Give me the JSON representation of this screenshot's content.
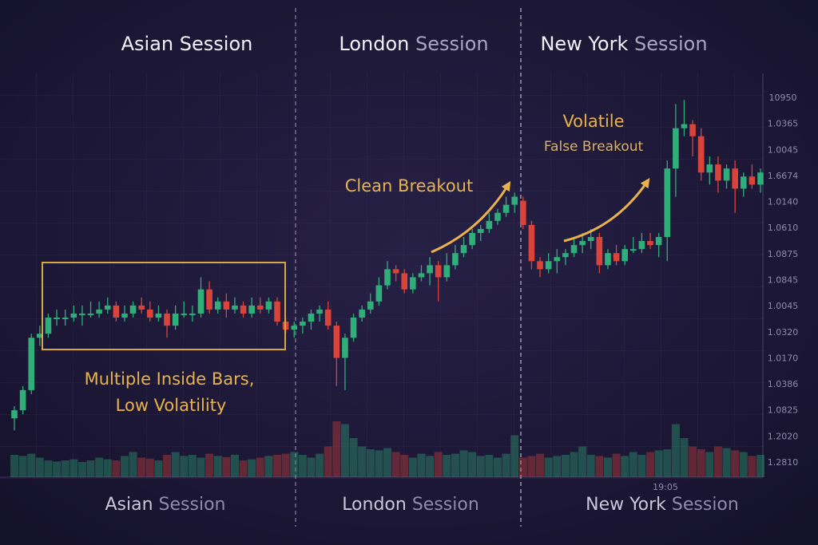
{
  "chart_data": {
    "type": "candlestick",
    "sessions_top": [
      {
        "name": "Asian",
        "word": "Session"
      },
      {
        "name": "London",
        "word": "Session"
      },
      {
        "name": "New York",
        "word": "Session"
      }
    ],
    "sessions_bottom": [
      {
        "name": "Asian",
        "word": "Session"
      },
      {
        "name": "London",
        "word": "Session"
      },
      {
        "name": "New York",
        "word": "Session"
      }
    ],
    "annotations": {
      "clean_breakout": "Clean Breakout",
      "volatile": "Volatile",
      "false_breakout": "False Breakout",
      "inside_bars": "Multiple Inside Bars,",
      "low_volatility": "Low Volatility"
    },
    "price_labels": [
      "10950",
      "1.0365",
      "1.0045",
      "1.6674",
      "1.0140",
      "1.0610",
      "1.0875",
      "1.0845",
      "1.0045",
      "1.0320",
      "1.0170",
      "1.0386",
      "1.0825",
      "1.2020",
      "1.2810"
    ],
    "time_label": "19:05",
    "ylim": [
      0,
      100
    ],
    "up_color": "#2fae7a",
    "down_color": "#d9443a",
    "ohlc": [
      [
        15,
        18,
        12,
        17
      ],
      [
        17,
        23,
        16,
        22
      ],
      [
        22,
        36,
        21,
        35
      ],
      [
        35,
        38,
        33,
        36
      ],
      [
        36,
        41,
        35,
        40
      ],
      [
        40,
        42,
        38,
        40
      ],
      [
        40,
        42,
        38,
        40
      ],
      [
        40,
        43,
        39,
        41
      ],
      [
        41,
        43,
        38,
        41
      ],
      [
        41,
        44,
        40,
        41
      ],
      [
        41,
        44,
        40,
        42
      ],
      [
        42,
        45,
        41,
        43
      ],
      [
        43,
        44,
        39,
        40
      ],
      [
        40,
        43,
        39,
        41
      ],
      [
        41,
        44,
        40,
        43
      ],
      [
        43,
        45,
        41,
        42
      ],
      [
        42,
        44,
        39,
        40
      ],
      [
        40,
        43,
        39,
        41
      ],
      [
        41,
        42,
        35,
        38
      ],
      [
        38,
        43,
        37,
        41
      ],
      [
        41,
        44,
        40,
        41
      ],
      [
        41,
        43,
        39,
        41
      ],
      [
        41,
        50,
        40,
        47
      ],
      [
        47,
        49,
        41,
        42
      ],
      [
        42,
        45,
        41,
        44
      ],
      [
        44,
        46,
        40,
        42
      ],
      [
        42,
        45,
        41,
        43
      ],
      [
        43,
        44,
        40,
        41
      ],
      [
        41,
        45,
        40,
        43
      ],
      [
        43,
        45,
        41,
        42
      ],
      [
        42,
        45,
        41,
        44
      ],
      [
        44,
        45,
        38,
        39
      ],
      [
        39,
        40,
        36,
        37
      ],
      [
        37,
        39,
        35,
        38
      ],
      [
        38,
        40,
        36,
        39
      ],
      [
        39,
        42,
        37,
        41
      ],
      [
        41,
        43,
        39,
        42
      ],
      [
        42,
        44,
        37,
        38
      ],
      [
        38,
        39,
        23,
        30
      ],
      [
        30,
        36,
        22,
        35
      ],
      [
        35,
        41,
        34,
        40
      ],
      [
        40,
        43,
        39,
        42
      ],
      [
        42,
        46,
        41,
        44
      ],
      [
        44,
        50,
        43,
        48
      ],
      [
        48,
        54,
        47,
        52
      ],
      [
        52,
        53,
        49,
        51
      ],
      [
        51,
        52,
        46,
        47
      ],
      [
        47,
        51,
        46,
        50
      ],
      [
        50,
        53,
        49,
        51
      ],
      [
        51,
        55,
        48,
        53
      ],
      [
        53,
        54,
        44,
        50
      ],
      [
        50,
        56,
        49,
        53
      ],
      [
        53,
        58,
        52,
        56
      ],
      [
        56,
        60,
        55,
        58
      ],
      [
        58,
        62,
        57,
        61
      ],
      [
        61,
        63,
        59,
        62
      ],
      [
        62,
        66,
        61,
        64
      ],
      [
        64,
        67,
        63,
        66
      ],
      [
        66,
        70,
        65,
        68
      ],
      [
        68,
        71,
        66,
        70
      ],
      [
        69,
        70,
        62,
        63
      ],
      [
        63,
        64,
        52,
        54
      ],
      [
        54,
        55,
        50,
        52
      ],
      [
        52,
        56,
        51,
        54
      ],
      [
        54,
        57,
        51,
        55
      ],
      [
        55,
        57,
        53,
        56
      ],
      [
        56,
        60,
        55,
        58
      ],
      [
        58,
        61,
        56,
        59
      ],
      [
        59,
        62,
        57,
        60
      ],
      [
        60,
        61,
        51,
        53
      ],
      [
        53,
        57,
        52,
        56
      ],
      [
        56,
        58,
        53,
        54
      ],
      [
        54,
        58,
        53,
        57
      ],
      [
        57,
        60,
        56,
        57
      ],
      [
        57,
        61,
        56,
        59
      ],
      [
        59,
        61,
        57,
        58
      ],
      [
        58,
        61,
        55,
        60
      ],
      [
        60,
        79,
        54,
        77
      ],
      [
        77,
        93,
        70,
        87
      ],
      [
        87,
        94,
        85,
        88
      ],
      [
        88,
        89,
        80,
        85
      ],
      [
        85,
        87,
        74,
        76
      ],
      [
        76,
        80,
        73,
        78
      ],
      [
        78,
        80,
        71,
        74
      ],
      [
        74,
        78,
        72,
        77
      ],
      [
        77,
        79,
        66,
        72
      ],
      [
        72,
        76,
        70,
        75
      ],
      [
        75,
        78,
        72,
        73
      ],
      [
        73,
        77,
        71,
        76
      ]
    ],
    "volume_ylim": [
      0,
      100
    ],
    "volumes": [
      40,
      38,
      42,
      35,
      30,
      28,
      30,
      32,
      27,
      30,
      35,
      32,
      30,
      38,
      45,
      35,
      33,
      30,
      40,
      45,
      38,
      40,
      35,
      42,
      38,
      36,
      40,
      30,
      32,
      35,
      38,
      40,
      42,
      45,
      40,
      35,
      42,
      55,
      100,
      95,
      70,
      55,
      50,
      48,
      52,
      45,
      40,
      35,
      42,
      38,
      45,
      40,
      42,
      48,
      45,
      38,
      40,
      35,
      42,
      75,
      35,
      38,
      42,
      35,
      38,
      40,
      45,
      55,
      40,
      38,
      35,
      42,
      38,
      45,
      40,
      45,
      48,
      50,
      95,
      70,
      55,
      50,
      45,
      55,
      52,
      48,
      45,
      38,
      40
    ]
  }
}
